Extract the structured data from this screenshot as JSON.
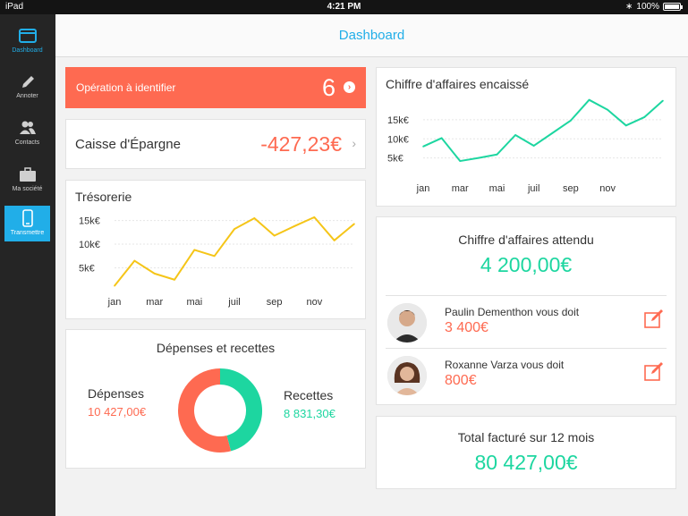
{
  "status": {
    "device": "iPad",
    "time": "4:21 PM",
    "battery": "100%",
    "battery_level": 1.0
  },
  "sidebar": {
    "items": [
      {
        "label": "Dashboard",
        "icon": "dashboard-icon"
      },
      {
        "label": "Annoter",
        "icon": "pencil-icon"
      },
      {
        "label": "Contacts",
        "icon": "contacts-icon"
      },
      {
        "label": "Ma société",
        "icon": "briefcase-icon"
      },
      {
        "label": "Transmettre",
        "icon": "phone-icon"
      }
    ]
  },
  "header": {
    "title": "Dashboard"
  },
  "operation": {
    "label": "Opération à identifier",
    "count": "6"
  },
  "caisse": {
    "label": "Caisse d'Épargne",
    "amount": "-427,23€"
  },
  "tresorerie": {
    "title": "Trésorerie"
  },
  "ca_encaisse": {
    "title": "Chiffre d'affaires encaissé"
  },
  "depenses_recettes": {
    "title": "Dépenses et recettes",
    "depenses_label": "Dépenses",
    "depenses_value": "10 427,00€",
    "recettes_label": "Recettes",
    "recettes_value": "8 831,30€"
  },
  "ca_attendu": {
    "title": "Chiffre d'affaires attendu",
    "amount": "4 200,00€",
    "debtors": [
      {
        "name": "Paulin Dementhon vous doit",
        "amount": "3 400€"
      },
      {
        "name": "Roxanne Varza vous doit",
        "amount": "800€"
      }
    ]
  },
  "total_facture": {
    "title": "Total facturé sur 12 mois",
    "amount": "80 427,00€"
  },
  "colors": {
    "accent": "#21aee8",
    "orange": "#fe6a51",
    "green": "#1dd6a0",
    "yellow": "#f5c518"
  },
  "chart_data": [
    {
      "type": "line",
      "title": "Trésorerie",
      "x_ticks": [
        "jan",
        "mar",
        "mai",
        "juil",
        "sep",
        "nov"
      ],
      "y_ticks": [
        "5k€",
        "10k€",
        "15k€"
      ],
      "series": [
        {
          "values": [
            1200,
            6500,
            3800,
            2500,
            8800,
            7500,
            13200,
            15500,
            11800,
            13800,
            15700,
            10800,
            14300
          ]
        }
      ],
      "ylim": [
        0,
        17000
      ],
      "color": "#f5c518"
    },
    {
      "type": "line",
      "title": "Chiffre d'affaires encaissé",
      "x_ticks": [
        "jan",
        "mar",
        "mai",
        "juil",
        "sep",
        "nov"
      ],
      "y_ticks": [
        "5k€",
        "10k€",
        "15k€"
      ],
      "series": [
        {
          "values": [
            8000,
            10200,
            4200,
            5000,
            5900,
            11000,
            8200,
            11500,
            14800,
            20200,
            17600,
            13500,
            15700,
            20000
          ]
        }
      ],
      "ylim": [
        0,
        22000
      ],
      "color": "#1dd6a0"
    },
    {
      "type": "pie",
      "title": "Dépenses et recettes",
      "categories": [
        "Dépenses",
        "Recettes"
      ],
      "values": [
        10427.0,
        8831.3
      ],
      "colors": [
        "#fe6a51",
        "#1dd6a0"
      ]
    }
  ]
}
